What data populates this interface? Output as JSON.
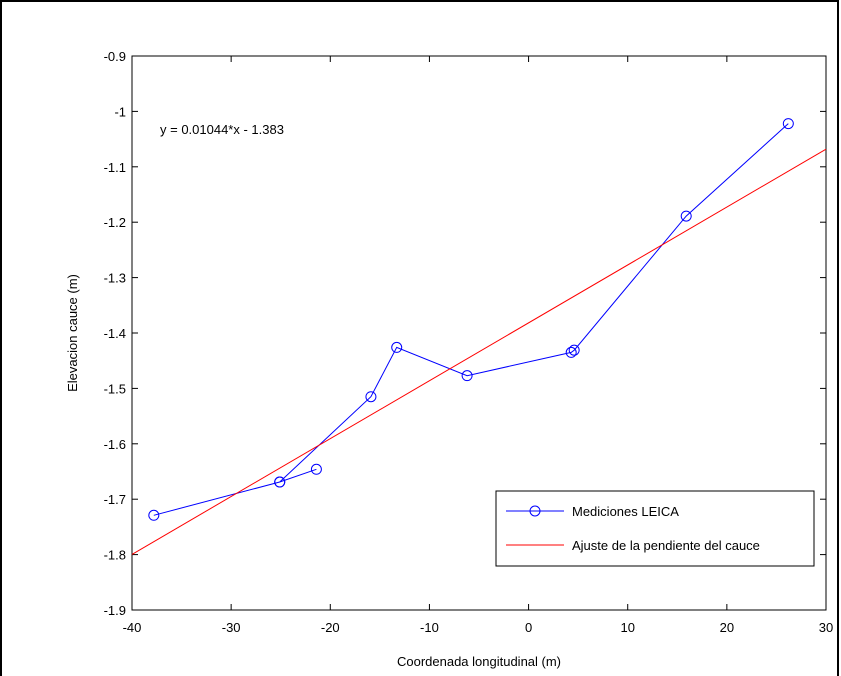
{
  "chart_data": {
    "type": "line",
    "xlabel": "Coordenada longitudinal (m)",
    "ylabel": "Elevacion cauce (m)",
    "xlim": [
      -40,
      30
    ],
    "ylim": [
      -1.9,
      -0.9
    ],
    "xticks": [
      "-40",
      "-30",
      "-20",
      "-10",
      "0",
      "10",
      "20",
      "30"
    ],
    "yticks": [
      "-0.9",
      "-1",
      "-1.1",
      "-1.2",
      "-1.3",
      "-1.4",
      "-1.5",
      "-1.6",
      "-1.7",
      "-1.8",
      "-1.9"
    ],
    "xtick_values": [
      -40,
      -30,
      -20,
      -10,
      0,
      10,
      20,
      30
    ],
    "ytick_values": [
      -0.9,
      -1.0,
      -1.1,
      -1.2,
      -1.3,
      -1.4,
      -1.5,
      -1.6,
      -1.7,
      -1.8,
      -1.9
    ],
    "annotation": "y = 0.01044*x - 1.383",
    "legend_position": "bottom-right",
    "grid": false,
    "series": [
      {
        "name": "Mediciones LEICA",
        "color": "#0000ff",
        "marker": "circle",
        "x": [
          -37.8,
          -25.1,
          -21.4,
          -25.1,
          -15.9,
          -13.3,
          -6.2,
          4.3,
          4.6,
          15.9,
          26.2
        ],
        "y": [
          -1.729,
          -1.669,
          -1.646,
          -1.669,
          -1.515,
          -1.426,
          -1.477,
          -1.435,
          -1.431,
          -1.189,
          -1.022
        ]
      },
      {
        "name": "Ajuste de la pendiente del cauce",
        "color": "#ff0000",
        "marker": "none",
        "x": [
          -40,
          30
        ],
        "y": [
          -1.7996,
          -1.0682
        ]
      }
    ]
  }
}
